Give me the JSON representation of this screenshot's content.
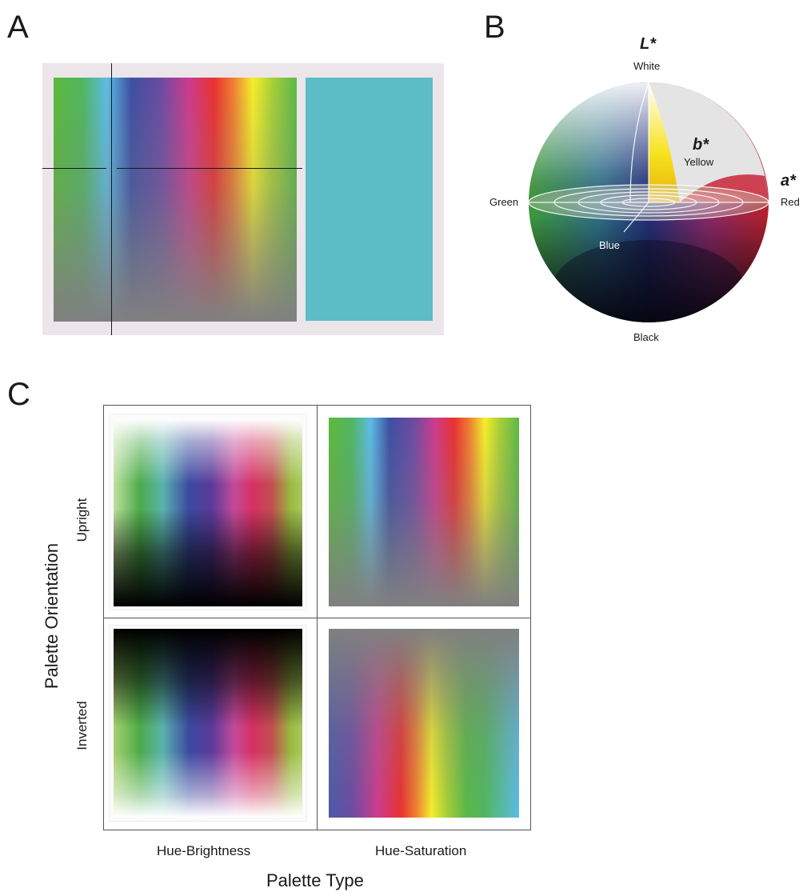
{
  "panel_a": {
    "letter": "A",
    "selected_color": "#5cbdc6"
  },
  "panel_b": {
    "letter": "B",
    "axis_l": "L*",
    "axis_a": "a*",
    "axis_b": "b*",
    "label_white": "White",
    "label_black": "Black",
    "label_green": "Green",
    "label_red": "Red",
    "label_yellow": "Yellow",
    "label_blue": "Blue"
  },
  "panel_c": {
    "letter": "C",
    "y_title": "Palette Orientation",
    "x_title": "Palette Type",
    "row_labels": [
      "Upright",
      "Inverted"
    ],
    "col_labels": [
      "Hue-Brightness",
      "Hue-Saturation"
    ]
  }
}
